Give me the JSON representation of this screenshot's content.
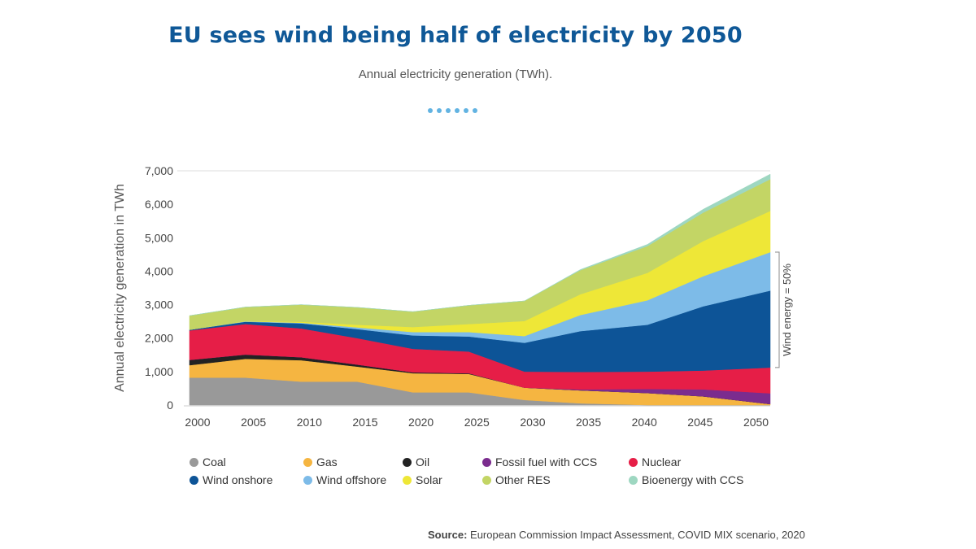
{
  "header": {
    "title": "EU sees wind being half of electricity by 2050",
    "subtitle": "Annual electricity generation (TWh).",
    "dots_count": 6,
    "dots_color": "#62b3e2"
  },
  "footer": {
    "source_label": "Source:",
    "source_text": "European Commission Impact Assessment, COVID MIX scenario, 2020"
  },
  "chart_data": {
    "type": "area",
    "stacked": true,
    "ylabel": "Annual electricity generation in TWh",
    "xlabel": "",
    "ylim": [
      0,
      7000
    ],
    "xlim": [
      2000,
      2052
    ],
    "x_ticks": [
      "2000",
      "2005",
      "2010",
      "2015",
      "2020",
      "2025",
      "2030",
      "2035",
      "2040",
      "2045",
      "2050"
    ],
    "y_ticks": [
      "0",
      "1,000",
      "2,000",
      "3,000",
      "4,000",
      "5,000",
      "6,000",
      "7,000"
    ],
    "y_tick_values": [
      0,
      1000,
      2000,
      3000,
      4000,
      5000,
      6000,
      7000
    ],
    "grid": "horizontal-top-only",
    "legend_placement": "bottom",
    "x": [
      2000,
      2005,
      2010,
      2015,
      2020,
      2025,
      2030,
      2035,
      2041,
      2046,
      2052
    ],
    "series": [
      {
        "name": "Coal",
        "color": "#999999",
        "values": [
          820,
          820,
          700,
          700,
          380,
          380,
          150,
          50,
          0,
          0,
          0
        ]
      },
      {
        "name": "Gas",
        "color": "#f5b541",
        "values": [
          370,
          560,
          640,
          450,
          570,
          550,
          370,
          390,
          360,
          260,
          30
        ]
      },
      {
        "name": "Oil",
        "color": "#222222",
        "values": [
          160,
          130,
          90,
          60,
          30,
          20,
          0,
          0,
          0,
          0,
          0
        ]
      },
      {
        "name": "Fossil fuel with CCS",
        "color": "#7b2c8e",
        "values": [
          0,
          0,
          0,
          0,
          0,
          0,
          0,
          30,
          120,
          210,
          320
        ]
      },
      {
        "name": "Nuclear",
        "color": "#e61e47",
        "values": [
          880,
          910,
          860,
          790,
          700,
          650,
          480,
          520,
          520,
          560,
          770
        ]
      },
      {
        "name": "Wind onshore",
        "color": "#0d5497",
        "values": [
          20,
          70,
          150,
          270,
          400,
          450,
          860,
          1220,
          1400,
          1920,
          2300
        ]
      },
      {
        "name": "Wind offshore",
        "color": "#7dbbe8",
        "values": [
          0,
          10,
          20,
          50,
          100,
          130,
          200,
          480,
          730,
          900,
          1150
        ]
      },
      {
        "name": "Solar",
        "color": "#eee737",
        "values": [
          0,
          10,
          30,
          80,
          150,
          240,
          450,
          620,
          820,
          1050,
          1230
        ]
      },
      {
        "name": "Other RES",
        "color": "#c3d565",
        "values": [
          420,
          420,
          510,
          520,
          460,
          560,
          600,
          720,
          800,
          850,
          950
        ]
      },
      {
        "name": "Bioenergy with CCS",
        "color": "#9ed7c1",
        "values": [
          0,
          0,
          0,
          0,
          0,
          0,
          0,
          20,
          50,
          100,
          150
        ]
      }
    ],
    "annotation": {
      "text": "Wind energy = 50%",
      "bracket_from": 1120,
      "bracket_to": 4570,
      "at_x": 2052
    }
  }
}
